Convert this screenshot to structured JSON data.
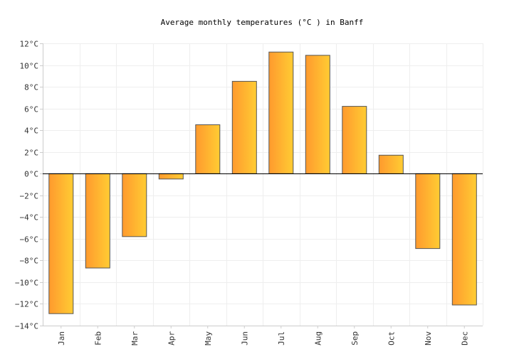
{
  "chart_data": {
    "type": "bar",
    "title": "Average monthly temperatures (°C ) in Banff",
    "xlabel": "",
    "ylabel": "",
    "categories": [
      "Jan",
      "Feb",
      "Mar",
      "Apr",
      "May",
      "Jun",
      "Jul",
      "Aug",
      "Sep",
      "Oct",
      "Nov",
      "Dec"
    ],
    "values": [
      -12.9,
      -8.7,
      -5.8,
      -0.5,
      4.5,
      8.5,
      11.2,
      10.9,
      6.2,
      1.7,
      -6.9,
      -12.1
    ],
    "ylim": [
      -14,
      12
    ],
    "yticks": [
      12,
      10,
      8,
      6,
      4,
      2,
      0,
      -2,
      -4,
      -6,
      -8,
      -10,
      -12,
      -14
    ],
    "ytick_labels": [
      "12°C",
      "10°C",
      "8°C",
      "6°C",
      "4°C",
      "2°C",
      "0°C",
      "−2°C",
      "−4°C",
      "−6°C",
      "−8°C",
      "−10°C",
      "−12°C",
      "−14°C"
    ],
    "grid": true,
    "legend": "none",
    "colors": {
      "bar_start": "#ff9a2e",
      "bar_end": "#ffcc33",
      "bar_stroke": "#555555",
      "zero_line": "#000000",
      "grid": "#eeeeee"
    }
  }
}
